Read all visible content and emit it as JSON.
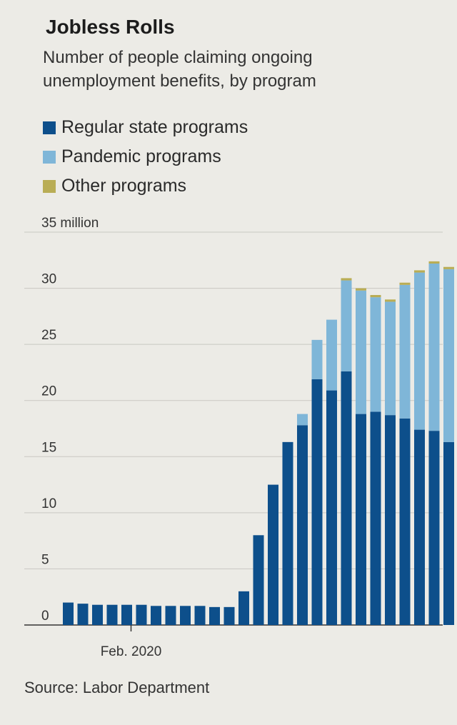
{
  "title": "Jobless Rolls",
  "subtitle": "Number of people claiming ongoing unemployment benefits, by program",
  "source": "Source: Labor Department",
  "colors": {
    "regular": "#0d4f8b",
    "pandemic": "#7fb6d8",
    "other": "#b9ad55"
  },
  "chart_data": {
    "type": "bar",
    "stacked": true,
    "ylim": [
      0,
      35
    ],
    "yticks": [
      {
        "value": 35,
        "label": "35 million"
      },
      {
        "value": 30,
        "label": "30"
      },
      {
        "value": 25,
        "label": "25"
      },
      {
        "value": 20,
        "label": "20"
      },
      {
        "value": 15,
        "label": "15"
      },
      {
        "value": 10,
        "label": "10"
      },
      {
        "value": 5,
        "label": "5"
      },
      {
        "value": 0,
        "label": "0"
      }
    ],
    "xlabel_marker": {
      "index": 4,
      "label": "Feb. 2020"
    },
    "legend": [
      "Regular state programs",
      "Pandemic programs",
      "Other programs"
    ],
    "series": [
      {
        "name": "Regular state programs",
        "values": [
          2.0,
          1.9,
          1.8,
          1.8,
          1.8,
          1.8,
          1.7,
          1.7,
          1.7,
          1.7,
          1.6,
          1.6,
          3.0,
          8.0,
          12.5,
          16.3,
          17.8,
          21.9,
          20.9,
          22.6,
          18.8,
          19.0,
          18.7,
          18.4,
          17.4,
          17.3,
          16.3
        ]
      },
      {
        "name": "Pandemic programs",
        "values": [
          0,
          0,
          0,
          0,
          0,
          0,
          0,
          0,
          0,
          0,
          0,
          0,
          0,
          0,
          0,
          0,
          1.0,
          3.5,
          6.3,
          8.1,
          11.0,
          10.2,
          10.1,
          11.9,
          14.0,
          14.9,
          15.4
        ]
      },
      {
        "name": "Other programs",
        "values": [
          0,
          0,
          0,
          0,
          0,
          0,
          0,
          0,
          0,
          0,
          0,
          0,
          0,
          0,
          0,
          0,
          0,
          0,
          0,
          0.2,
          0.2,
          0.2,
          0.2,
          0.2,
          0.2,
          0.2,
          0.2
        ]
      }
    ]
  }
}
